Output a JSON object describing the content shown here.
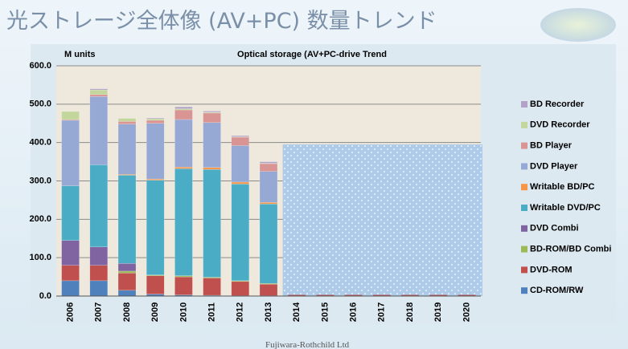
{
  "page_title": "光ストレージ全体像 (AV+PC) 数量トレンド",
  "footer": "Fujiwara-Rothchild Ltd",
  "chart_data": {
    "type": "stacked_bar",
    "title": "Optical storage (AV+PC-drive Trend",
    "y_label": "M units",
    "categories": [
      "2006",
      "2007",
      "2008",
      "2009",
      "2010",
      "2011",
      "2012",
      "2013",
      "2014",
      "2015",
      "2016",
      "2017",
      "2018",
      "2019",
      "2020"
    ],
    "ylim": [
      0,
      600
    ],
    "yticks": [
      {
        "value": 0,
        "label": "0.0"
      },
      {
        "value": 100,
        "label": "100.0"
      },
      {
        "value": 200,
        "label": "200.0"
      },
      {
        "value": 300,
        "label": "300.0"
      },
      {
        "value": 400,
        "label": "400.0"
      },
      {
        "value": 500,
        "label": "500.0"
      },
      {
        "value": 600,
        "label": "600.0"
      }
    ],
    "grid": true,
    "legend": "right",
    "series": [
      {
        "name": "CD-ROM/RW",
        "color": "#4f81bd",
        "values": [
          40,
          40,
          15,
          5,
          3,
          2,
          1,
          1,
          0,
          0,
          0,
          0,
          0,
          0,
          0
        ]
      },
      {
        "name": "DVD-ROM",
        "color": "#c0504d",
        "values": [
          40,
          40,
          45,
          48,
          47,
          45,
          37,
          30,
          3,
          3,
          3,
          3,
          3,
          3,
          3
        ]
      },
      {
        "name": "BD-ROM/BD Combi",
        "color": "#9bbb59",
        "values": [
          0,
          0,
          5,
          2,
          3,
          2,
          2,
          2,
          0,
          0,
          0,
          0,
          0,
          0,
          0
        ]
      },
      {
        "name": "DVD Combi",
        "color": "#8064a2",
        "values": [
          65,
          48,
          20,
          0,
          0,
          0,
          0,
          0,
          0,
          0,
          0,
          0,
          0,
          0,
          0
        ]
      },
      {
        "name": "Writable DVD/PC",
        "color": "#4bacc6",
        "values": [
          142,
          214,
          230,
          247,
          279,
          281,
          252,
          207,
          0,
          0,
          0,
          0,
          0,
          0,
          0
        ]
      },
      {
        "name": "Writable BD/PC",
        "color": "#f79646",
        "values": [
          0,
          0,
          2,
          3,
          4,
          5,
          5,
          4,
          0,
          0,
          0,
          0,
          0,
          0,
          0
        ]
      },
      {
        "name": "DVD Player",
        "color": "#95a9d4",
        "values": [
          171,
          178,
          131,
          145,
          124,
          117,
          95,
          81,
          0,
          0,
          0,
          0,
          0,
          0,
          0
        ]
      },
      {
        "name": "BD Player",
        "color": "#d99594",
        "values": [
          2,
          5,
          7,
          8,
          25,
          25,
          22,
          20,
          0,
          0,
          0,
          0,
          0,
          0,
          0
        ]
      },
      {
        "name": "DVD Recorder",
        "color": "#c3d69b",
        "values": [
          21,
          12,
          8,
          4,
          3,
          2,
          1,
          1,
          0,
          0,
          0,
          0,
          0,
          0,
          0
        ]
      },
      {
        "name": "BD Recorder",
        "color": "#b2a2c7",
        "values": [
          0,
          3,
          0,
          2,
          5,
          3,
          3,
          4,
          0,
          0,
          0,
          0,
          0,
          0,
          0
        ]
      }
    ]
  }
}
